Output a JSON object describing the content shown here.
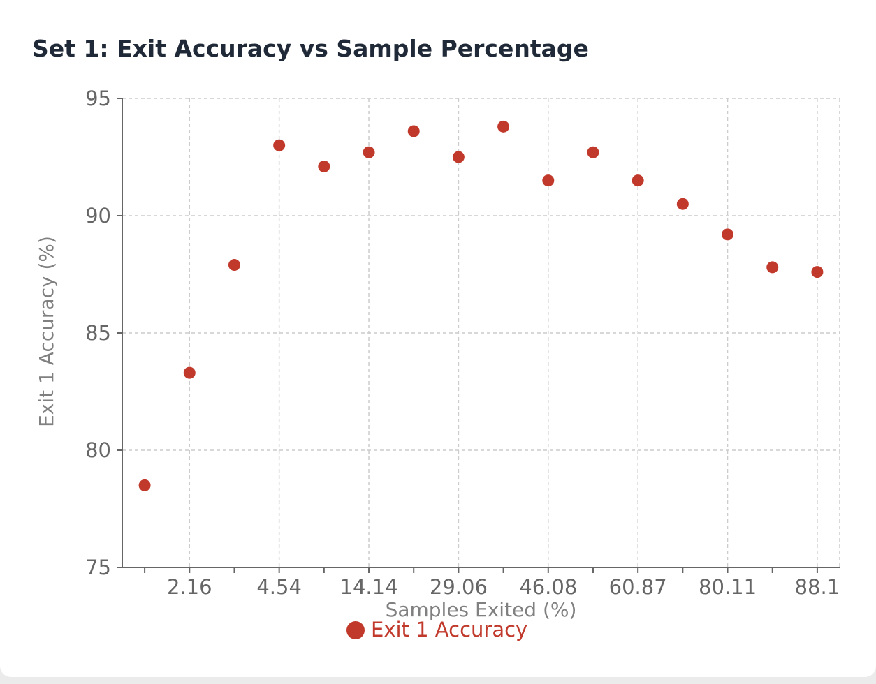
{
  "chart_data": {
    "type": "scatter",
    "title": "Set 1: Exit Accuracy vs Sample Percentage",
    "xlabel": "Samples Exited (%)",
    "ylabel": "Exit 1 Accuracy (%)",
    "x_tick_labels": [
      "2.16",
      "4.54",
      "14.14",
      "29.06",
      "46.08",
      "60.87",
      "80.11",
      "88.1"
    ],
    "y_ticks": [
      75,
      80,
      85,
      90,
      95
    ],
    "ylim": [
      75,
      95
    ],
    "grid": true,
    "legend_position": "bottom-center",
    "series": [
      {
        "name": "Exit 1 Accuracy",
        "color": "#c0392b",
        "values": [
          78.5,
          83.3,
          87.9,
          93.0,
          92.1,
          92.7,
          93.6,
          92.5,
          93.8,
          91.5,
          92.7,
          91.5,
          90.5,
          89.2,
          87.8,
          87.6
        ]
      }
    ]
  }
}
